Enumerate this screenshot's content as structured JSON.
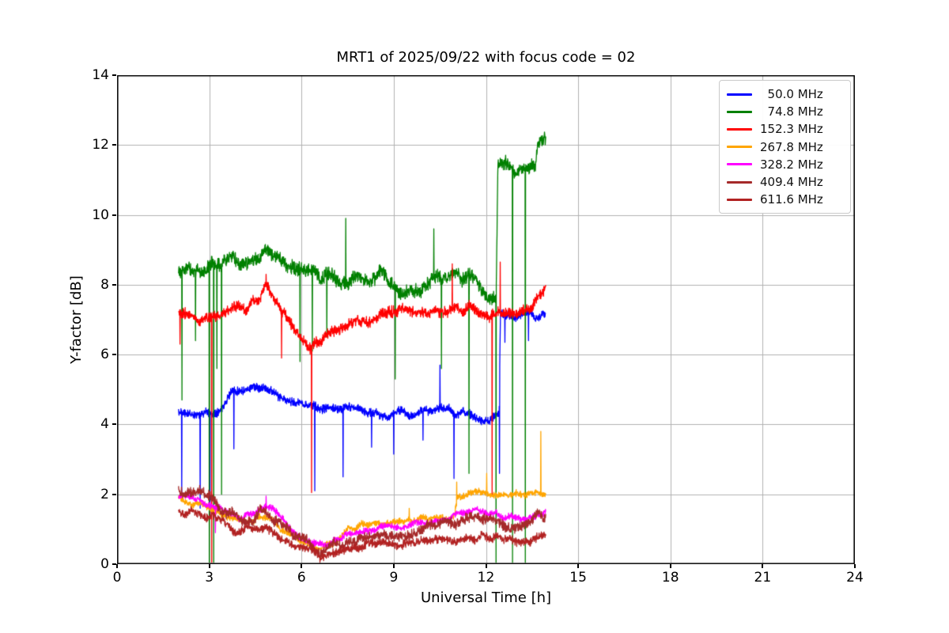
{
  "chart_data": {
    "type": "line",
    "title": "MRT1 of 2025/09/22 with focus code = 02",
    "xlabel": "Universal Time [h]",
    "ylabel": "Y-factor [dB]",
    "xlim": [
      0,
      24
    ],
    "ylim": [
      0,
      14
    ],
    "x_ticks": [
      0,
      3,
      6,
      9,
      12,
      15,
      18,
      21,
      24
    ],
    "y_ticks": [
      0,
      2,
      4,
      6,
      8,
      10,
      12,
      14
    ],
    "grid": true,
    "grid_color": "#b0b0b0",
    "legend_position": "upper right",
    "time_range_of_data_hours": [
      2.0,
      13.95
    ],
    "series": [
      {
        "name": "50.0 MHz",
        "legend_label": "  50.0 MHz",
        "color": "#0000ff",
        "noise": 0.13,
        "seed": 11,
        "trend": [
          [
            2.0,
            4.35
          ],
          [
            2.6,
            4.25
          ],
          [
            3.1,
            4.3
          ],
          [
            3.45,
            4.55
          ],
          [
            3.75,
            4.95
          ],
          [
            4.3,
            5.0
          ],
          [
            4.7,
            5.05
          ],
          [
            5.1,
            4.9
          ],
          [
            5.7,
            4.7
          ],
          [
            6.3,
            4.55
          ],
          [
            7.0,
            4.45
          ],
          [
            7.8,
            4.4
          ],
          [
            8.6,
            4.3
          ],
          [
            9.4,
            4.3
          ],
          [
            10.1,
            4.4
          ],
          [
            10.6,
            4.45
          ],
          [
            11.1,
            4.3
          ],
          [
            11.7,
            4.2
          ],
          [
            12.2,
            4.2
          ],
          [
            12.43,
            4.25
          ],
          [
            12.47,
            7.15
          ],
          [
            12.9,
            7.1
          ],
          [
            13.3,
            7.2
          ],
          [
            13.7,
            7.1
          ],
          [
            13.95,
            7.15
          ]
        ],
        "spikes": [
          [
            2.1,
            2.06
          ],
          [
            2.7,
            1.6
          ],
          [
            3.02,
            1.35
          ],
          [
            3.8,
            3.3
          ],
          [
            6.43,
            2.1
          ],
          [
            7.35,
            2.5
          ],
          [
            8.28,
            3.35
          ],
          [
            9.0,
            3.15
          ],
          [
            9.95,
            3.55
          ],
          [
            10.5,
            5.7
          ],
          [
            10.96,
            2.45
          ],
          [
            12.44,
            2.6
          ],
          [
            12.62,
            6.35
          ],
          [
            13.38,
            6.4
          ]
        ]
      },
      {
        "name": "74.8 MHz",
        "legend_label": "  74.8 MHz",
        "color": "#008000",
        "noise": 0.22,
        "seed": 22,
        "trend": [
          [
            2.0,
            8.35
          ],
          [
            2.3,
            8.6
          ],
          [
            2.8,
            8.45
          ],
          [
            3.2,
            8.5
          ],
          [
            3.6,
            8.7
          ],
          [
            4.0,
            8.75
          ],
          [
            4.4,
            8.8
          ],
          [
            4.8,
            9.0
          ],
          [
            5.15,
            8.9
          ],
          [
            5.5,
            8.6
          ],
          [
            6.0,
            8.35
          ],
          [
            6.5,
            8.3
          ],
          [
            7.0,
            8.25
          ],
          [
            7.6,
            8.2
          ],
          [
            8.2,
            8.2
          ],
          [
            8.6,
            8.35
          ],
          [
            9.2,
            7.9
          ],
          [
            9.8,
            7.9
          ],
          [
            10.3,
            8.25
          ],
          [
            10.8,
            8.45
          ],
          [
            11.2,
            8.3
          ],
          [
            11.7,
            8.15
          ],
          [
            12.05,
            7.8
          ],
          [
            12.33,
            7.6
          ],
          [
            12.39,
            11.5
          ],
          [
            12.6,
            11.55
          ],
          [
            12.85,
            11.2
          ],
          [
            13.1,
            11.4
          ],
          [
            13.35,
            11.3
          ],
          [
            13.62,
            11.4
          ],
          [
            13.68,
            12.05
          ],
          [
            13.95,
            12.05
          ]
        ],
        "spikes": [
          [
            2.11,
            4.7
          ],
          [
            2.55,
            6.4
          ],
          [
            3.0,
            0.05
          ],
          [
            3.14,
            0.05
          ],
          [
            3.25,
            5.6
          ],
          [
            3.4,
            2.0
          ],
          [
            5.95,
            5.8
          ],
          [
            6.35,
            6.1
          ],
          [
            6.82,
            6.5
          ],
          [
            7.44,
            9.9
          ],
          [
            9.05,
            5.3
          ],
          [
            10.3,
            9.6
          ],
          [
            10.55,
            5.6
          ],
          [
            11.45,
            2.6
          ],
          [
            12.33,
            0.05
          ],
          [
            12.86,
            0.05
          ],
          [
            13.28,
            0.05
          ]
        ]
      },
      {
        "name": "152.3 MHz",
        "legend_label": "152.3 MHz",
        "color": "#ff0000",
        "noise": 0.17,
        "seed": 33,
        "trend": [
          [
            2.0,
            7.1
          ],
          [
            2.6,
            7.1
          ],
          [
            3.0,
            7.0
          ],
          [
            3.4,
            7.15
          ],
          [
            3.8,
            7.25
          ],
          [
            4.2,
            7.3
          ],
          [
            4.6,
            7.6
          ],
          [
            4.85,
            7.95
          ],
          [
            5.1,
            7.5
          ],
          [
            5.5,
            7.1
          ],
          [
            5.9,
            6.7
          ],
          [
            6.3,
            6.15
          ],
          [
            6.7,
            6.5
          ],
          [
            7.2,
            6.7
          ],
          [
            7.8,
            6.9
          ],
          [
            8.4,
            6.95
          ],
          [
            9.0,
            7.25
          ],
          [
            9.6,
            7.15
          ],
          [
            10.2,
            7.3
          ],
          [
            10.8,
            7.25
          ],
          [
            11.4,
            7.3
          ],
          [
            12.0,
            7.0
          ],
          [
            12.4,
            7.15
          ],
          [
            12.8,
            7.25
          ],
          [
            13.2,
            7.3
          ],
          [
            13.6,
            7.5
          ],
          [
            13.95,
            7.9
          ]
        ],
        "spikes": [
          [
            2.05,
            6.3
          ],
          [
            3.08,
            0.05
          ],
          [
            4.85,
            8.3
          ],
          [
            5.35,
            5.9
          ],
          [
            6.33,
            2.05
          ],
          [
            10.9,
            8.6
          ],
          [
            12.2,
            2.0
          ],
          [
            12.46,
            8.65
          ]
        ]
      },
      {
        "name": "267.8 MHz",
        "legend_label": "267.8 MHz",
        "color": "#ffa500",
        "noise": 0.1,
        "seed": 44,
        "trend": [
          [
            2.0,
            1.9
          ],
          [
            2.5,
            1.75
          ],
          [
            3.0,
            1.6
          ],
          [
            3.5,
            1.4
          ],
          [
            4.0,
            1.25
          ],
          [
            4.5,
            1.3
          ],
          [
            5.0,
            1.25
          ],
          [
            5.5,
            0.95
          ],
          [
            6.0,
            0.65
          ],
          [
            6.6,
            0.45
          ],
          [
            7.0,
            0.6
          ],
          [
            7.5,
            0.95
          ],
          [
            8.0,
            1.1
          ],
          [
            8.6,
            1.2
          ],
          [
            9.2,
            1.25
          ],
          [
            9.6,
            1.3
          ],
          [
            10.0,
            1.3
          ],
          [
            10.6,
            1.35
          ],
          [
            10.98,
            1.4
          ],
          [
            11.08,
            1.95
          ],
          [
            11.5,
            2.0
          ],
          [
            12.0,
            2.0
          ],
          [
            12.5,
            1.95
          ],
          [
            13.0,
            2.0
          ],
          [
            13.5,
            2.0
          ],
          [
            13.95,
            2.0
          ]
        ],
        "spikes": [
          [
            9.5,
            1.6
          ],
          [
            11.05,
            2.35
          ],
          [
            12.02,
            2.6
          ],
          [
            13.78,
            3.8
          ]
        ]
      },
      {
        "name": "328.2 MHz",
        "legend_label": "328.2 MHz",
        "color": "#ff00ff",
        "noise": 0.1,
        "seed": 55,
        "trend": [
          [
            2.0,
            1.95
          ],
          [
            2.5,
            1.85
          ],
          [
            3.0,
            1.75
          ],
          [
            3.5,
            1.55
          ],
          [
            4.0,
            1.35
          ],
          [
            4.5,
            1.5
          ],
          [
            4.85,
            1.75
          ],
          [
            5.1,
            1.55
          ],
          [
            5.35,
            1.35
          ],
          [
            5.7,
            1.0
          ],
          [
            6.1,
            0.75
          ],
          [
            6.6,
            0.55
          ],
          [
            7.0,
            0.6
          ],
          [
            7.5,
            0.85
          ],
          [
            8.0,
            1.0
          ],
          [
            8.6,
            1.05
          ],
          [
            9.2,
            1.1
          ],
          [
            9.8,
            1.15
          ],
          [
            10.4,
            1.2
          ],
          [
            10.8,
            1.3
          ],
          [
            11.2,
            1.45
          ],
          [
            11.6,
            1.5
          ],
          [
            12.0,
            1.5
          ],
          [
            12.4,
            1.4
          ],
          [
            12.8,
            1.3
          ],
          [
            13.2,
            1.3
          ],
          [
            13.6,
            1.4
          ],
          [
            13.95,
            1.5
          ]
        ],
        "spikes": [
          [
            3.2,
            0.9
          ],
          [
            4.85,
            1.95
          ]
        ]
      },
      {
        "name": "409.4 MHz",
        "legend_label": "409.4 MHz",
        "color": "#a52a2a",
        "noise": 0.16,
        "seed": 66,
        "trend": [
          [
            2.0,
            2.2
          ],
          [
            2.4,
            2.15
          ],
          [
            2.8,
            2.0
          ],
          [
            3.2,
            1.8
          ],
          [
            3.6,
            1.55
          ],
          [
            4.0,
            1.35
          ],
          [
            4.4,
            1.35
          ],
          [
            4.8,
            1.5
          ],
          [
            5.1,
            1.25
          ],
          [
            5.5,
            0.95
          ],
          [
            6.0,
            0.7
          ],
          [
            6.3,
            0.55
          ],
          [
            6.65,
            0.35
          ],
          [
            7.0,
            0.5
          ],
          [
            7.5,
            0.7
          ],
          [
            8.0,
            0.8
          ],
          [
            8.6,
            0.85
          ],
          [
            9.2,
            0.9
          ],
          [
            9.8,
            0.95
          ],
          [
            10.4,
            1.05
          ],
          [
            11.0,
            1.2
          ],
          [
            11.5,
            1.3
          ],
          [
            12.0,
            1.35
          ],
          [
            12.4,
            1.15
          ],
          [
            12.8,
            1.05
          ],
          [
            13.2,
            1.15
          ],
          [
            13.6,
            1.35
          ],
          [
            13.95,
            1.45
          ]
        ],
        "spikes": []
      },
      {
        "name": "611.6 MHz",
        "legend_label": "611.6 MHz",
        "color": "#b22222",
        "noise": 0.13,
        "seed": 77,
        "trend": [
          [
            2.0,
            1.55
          ],
          [
            2.4,
            1.5
          ],
          [
            2.8,
            1.42
          ],
          [
            3.2,
            1.28
          ],
          [
            3.6,
            1.1
          ],
          [
            4.0,
            0.95
          ],
          [
            4.4,
            1.0
          ],
          [
            4.8,
            1.0
          ],
          [
            5.2,
            0.9
          ],
          [
            5.6,
            0.68
          ],
          [
            6.0,
            0.5
          ],
          [
            6.6,
            0.25
          ],
          [
            7.0,
            0.38
          ],
          [
            7.5,
            0.5
          ],
          [
            8.0,
            0.55
          ],
          [
            8.6,
            0.6
          ],
          [
            9.2,
            0.6
          ],
          [
            9.8,
            0.65
          ],
          [
            10.4,
            0.68
          ],
          [
            11.0,
            0.72
          ],
          [
            11.6,
            0.78
          ],
          [
            12.0,
            0.8
          ],
          [
            12.5,
            0.7
          ],
          [
            13.0,
            0.65
          ],
          [
            13.5,
            0.7
          ],
          [
            13.95,
            0.8
          ]
        ],
        "spikes": [
          [
            6.6,
            0.05
          ]
        ]
      }
    ]
  }
}
